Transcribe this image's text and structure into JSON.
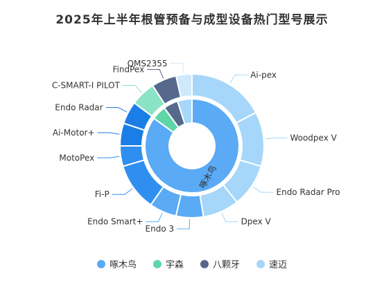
{
  "chart_data": {
    "type": "pie",
    "title": "2025年上半年根管预备与成型设备热门型号展示",
    "inner": {
      "slices": [
        {
          "name": "啄木鸟",
          "value": 85,
          "color": "#5aaaf5"
        },
        {
          "name": "宇森",
          "value": 5,
          "color": "#5fd6a8"
        },
        {
          "name": "八颗牙",
          "value": 5,
          "color": "#56688c"
        },
        {
          "name": "速迈",
          "value": 5,
          "color": "#a6d6fa"
        }
      ],
      "label": "啄木鸟"
    },
    "outer": {
      "slices": [
        {
          "name": "Ai-pex",
          "value": 17,
          "color": "#a6d6fa"
        },
        {
          "name": "Woodpex V",
          "value": 12,
          "color": "#a6d6fa"
        },
        {
          "name": "Endo Radar Pro",
          "value": 9.5,
          "color": "#a6d6fa"
        },
        {
          "name": "Dpex V",
          "value": 8,
          "color": "#a6d6fa"
        },
        {
          "name": "Endo 3",
          "value": 6,
          "color": "#5aaaf5"
        },
        {
          "name": "Endo Smart+",
          "value": 6,
          "color": "#5aaaf5"
        },
        {
          "name": "Fi-P",
          "value": 10.5,
          "color": "#2e8ff0"
        },
        {
          "name": "MotoPex",
          "value": 4.5,
          "color": "#2e8ff0"
        },
        {
          "name": "Ai-Motor+",
          "value": 5,
          "color": "#1a7ee6"
        },
        {
          "name": "Endo Radar",
          "value": 5,
          "color": "#1a7ee6"
        },
        {
          "name": "C-SMART-I PILOT",
          "value": 5.5,
          "color": "#8ae3c5"
        },
        {
          "name": "FindPex",
          "value": 5.5,
          "color": "#56688c"
        },
        {
          "name": "OMS2355",
          "value": 3.5,
          "color": "#cde9fb"
        }
      ]
    },
    "legend": [
      {
        "name": "啄木鸟",
        "color": "#5aaaf5"
      },
      {
        "name": "宇森",
        "color": "#5fd6a8"
      },
      {
        "name": "八颗牙",
        "color": "#56688c"
      },
      {
        "name": "速迈",
        "color": "#a6d6fa"
      }
    ],
    "legend_position": "bottom"
  }
}
